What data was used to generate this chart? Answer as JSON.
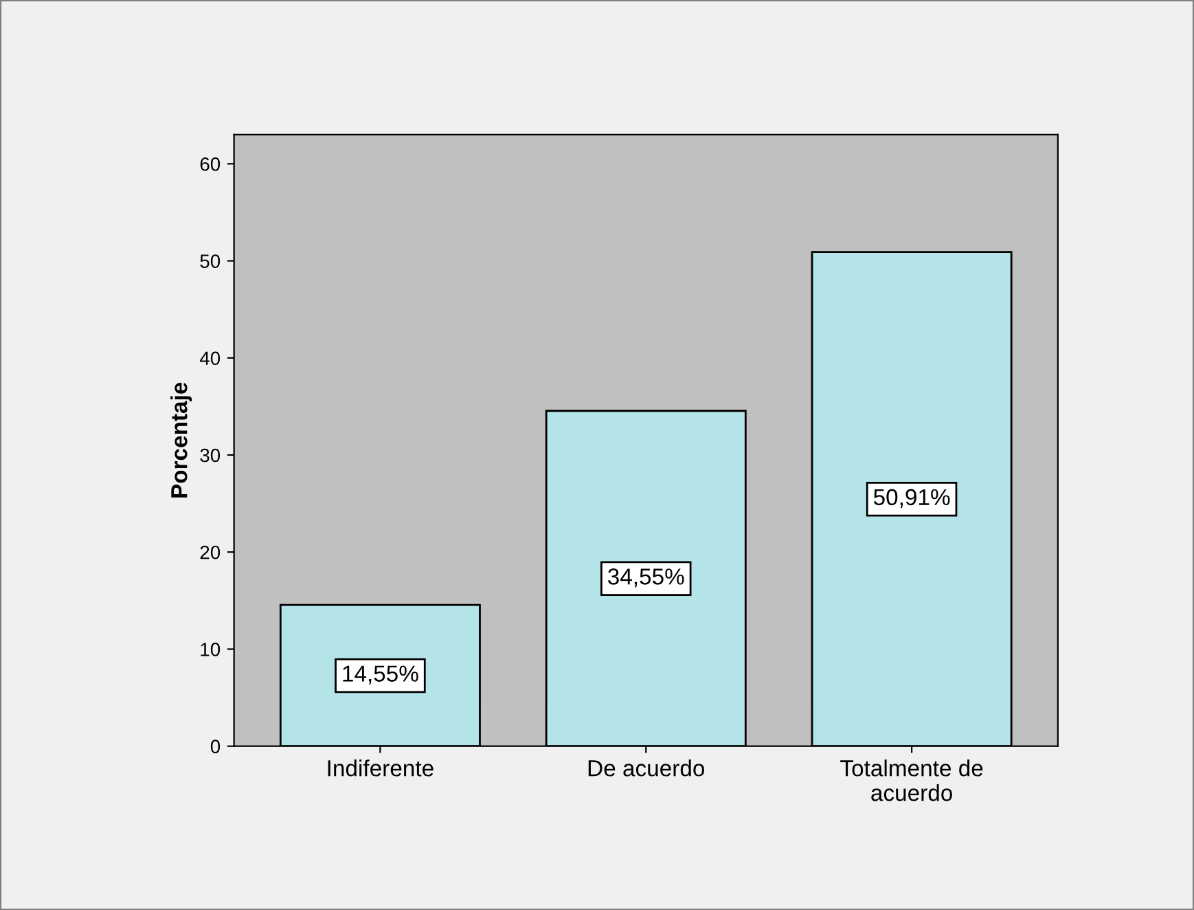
{
  "chart_data": {
    "type": "bar",
    "ylabel": "Porcentaje",
    "categories": [
      "Indiferente",
      "De acuerdo",
      "Totalmente de\nacuerdo"
    ],
    "values": [
      14.55,
      34.55,
      50.91
    ],
    "value_labels": [
      "14,55%",
      "34,55%",
      "50,91%"
    ],
    "color": "#b4e4e8",
    "ylim": [
      0,
      63
    ],
    "yticks": [
      0,
      10,
      20,
      30,
      40,
      50,
      60
    ],
    "grid": false
  }
}
